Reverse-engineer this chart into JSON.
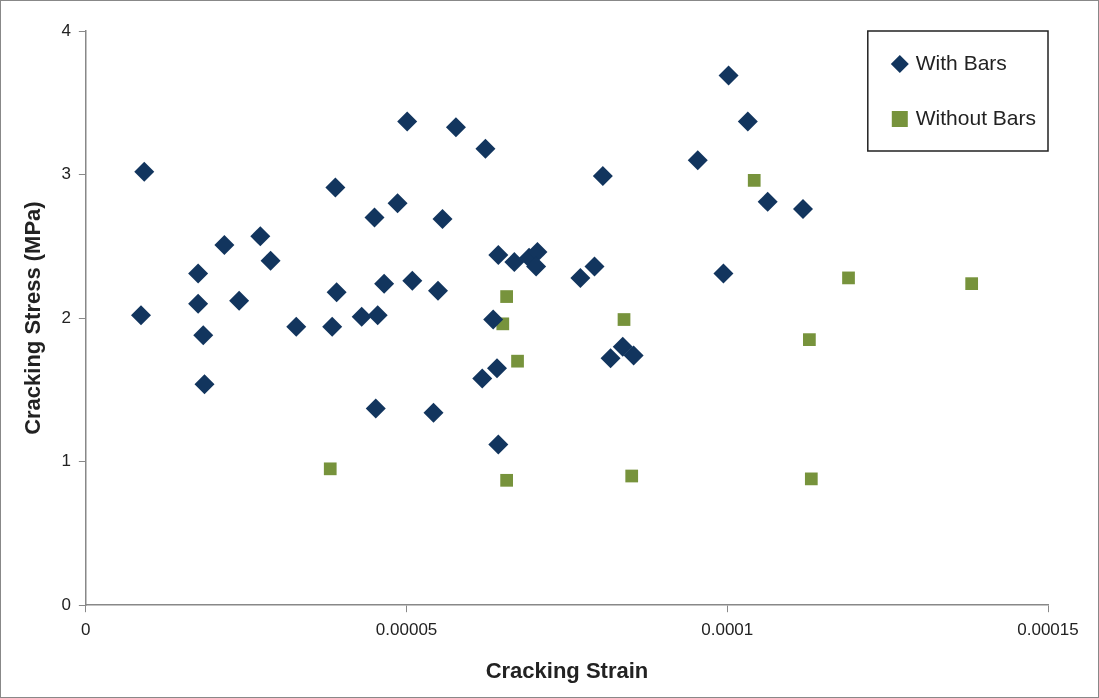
{
  "chart_data": {
    "type": "scatter",
    "xlabel": "Cracking Strain",
    "ylabel": "Cracking Stress (MPa)",
    "xlim": [
      0,
      0.00015
    ],
    "xticks": [
      0,
      {
        "value": 5e-05,
        "label": "0.00005"
      },
      {
        "value": 0.0001,
        "label": "0.0001"
      },
      {
        "value": 0.00015,
        "label": "0.00015"
      }
    ],
    "ylim": [
      0,
      4
    ],
    "yticks": [
      0,
      1,
      2,
      3,
      4
    ],
    "grid": false,
    "legend": "top right",
    "series": [
      {
        "name": "With Bars",
        "color": "#12355e",
        "marker": "diamond",
        "x": [
          8.6e-06,
          9.1e-06,
          1.75e-05,
          1.75e-05,
          1.83e-05,
          1.85e-05,
          2.16e-05,
          2.39e-05,
          2.72e-05,
          2.88e-05,
          3.28e-05,
          3.89e-05,
          3.91e-05,
          3.84e-05,
          4.3e-05,
          4.5e-05,
          4.52e-05,
          4.55e-05,
          4.65e-05,
          4.86e-05,
          5.01e-05,
          5.09e-05,
          5.49e-05,
          5.56e-05,
          5.42e-05,
          5.77e-05,
          6.23e-05,
          6.18e-05,
          6.35e-05,
          6.43e-05,
          6.41e-05,
          6.43e-05,
          6.68e-05,
          6.91e-05,
          7.04e-05,
          7.02e-05,
          7.71e-05,
          7.93e-05,
          8.06e-05,
          8.18e-05,
          8.37e-05,
          8.54e-05,
          9.54e-05,
          9.94e-05,
          0.0001002,
          0.0001032,
          0.0001063,
          0.0001118
        ],
        "values": [
          2.02,
          3.02,
          2.31,
          2.1,
          1.88,
          1.54,
          2.51,
          2.12,
          2.57,
          2.4,
          1.94,
          2.91,
          2.18,
          1.94,
          2.01,
          2.7,
          1.37,
          2.02,
          2.24,
          2.8,
          3.37,
          2.26,
          2.19,
          2.69,
          1.34,
          3.33,
          3.18,
          1.58,
          1.99,
          2.44,
          1.65,
          1.12,
          2.39,
          2.42,
          2.46,
          2.36,
          2.28,
          2.36,
          2.99,
          1.72,
          1.8,
          1.74,
          3.1,
          2.31,
          3.69,
          3.37,
          2.81,
          2.76
        ]
      },
      {
        "name": "Without Bars",
        "color": "#77933c",
        "marker": "square",
        "x": [
          3.81e-05,
          6.5e-05,
          6.56e-05,
          6.56e-05,
          6.73e-05,
          8.39e-05,
          8.51e-05,
          0.0001042,
          0.0001128,
          0.0001131,
          0.0001189,
          0.0001381
        ],
        "values": [
          0.95,
          1.96,
          2.15,
          0.87,
          1.7,
          1.99,
          0.9,
          2.96,
          1.85,
          0.88,
          2.28,
          2.24
        ]
      }
    ]
  }
}
